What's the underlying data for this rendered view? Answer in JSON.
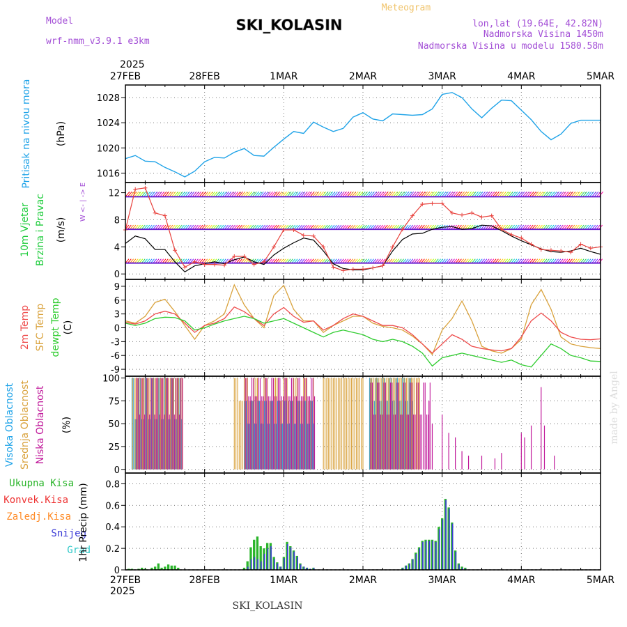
{
  "header": {
    "model_label": "Model",
    "model_name": "wrf-nmm_v3.9.1 e3km",
    "station": "SKI_KOLASIN",
    "title": "Meteogram",
    "lonlat": "lon,lat (19.64E, 42.82N)",
    "elevation": "Nadmorska Visina 1450m",
    "model_elevation": "Nadmorska Visina u modelu 1580.58m",
    "footer_station": "SKI_KOLASIN",
    "watermark": "made by Angel",
    "year_top": "2025",
    "year_bottom": "2025"
  },
  "colors": {
    "pressure": "#1fa3e8",
    "wind_speed": "#000000",
    "wind_gust": "#e8413c",
    "temp2m": "#ee4b4b",
    "sfc": "#d9a23c",
    "dew": "#2ecc2e",
    "high": "#1fa3e8",
    "mid": "#d9a23c",
    "low": "#c0189a",
    "total": "#2bb52b",
    "conv": "#ee3333",
    "frz": "#ff8c28",
    "snow": "#3b3bd6",
    "hail": "#2fc8c8"
  },
  "dates": [
    "27FEB",
    "28FEB",
    "1MAR",
    "2MAR",
    "3MAR",
    "4MAR",
    "5MAR"
  ],
  "chart_data": [
    {
      "type": "line",
      "name": "pressure",
      "ylabel": "Pritisak na nivou mora",
      "unit": "(hPa)",
      "ylim": [
        1014.5,
        1030
      ],
      "yticks": [
        1016,
        1020,
        1024,
        1028
      ],
      "x_hours": [
        0,
        3,
        6,
        9,
        12,
        15,
        18,
        21,
        24,
        27,
        30,
        33,
        36,
        39,
        42,
        45,
        48,
        51,
        54,
        57,
        60,
        63,
        66,
        69,
        72,
        75,
        78,
        81,
        84,
        87,
        90,
        93,
        96,
        99,
        102,
        105,
        108,
        111,
        114,
        117,
        120,
        123,
        126,
        129,
        132,
        135,
        138,
        141,
        144
      ],
      "values": [
        1018.3,
        1018.8,
        1017.9,
        1017.8,
        1016.9,
        1016.2,
        1015.4,
        1016.3,
        1017.8,
        1018.5,
        1018.4,
        1019.3,
        1019.9,
        1018.8,
        1018.7,
        1020.1,
        1021.4,
        1022.6,
        1022.3,
        1024.1,
        1023.3,
        1022.6,
        1023.1,
        1024.9,
        1025.6,
        1024.6,
        1024.3,
        1025.4,
        1025.3,
        1025.2,
        1025.3,
        1026.2,
        1028.5,
        1028.8,
        1028.0,
        1026.2,
        1024.8,
        1026.3,
        1027.6,
        1027.5,
        1026.0,
        1024.5,
        1022.6,
        1021.3,
        1022.2,
        1023.9,
        1024.4,
        1024.4,
        1024.4
      ]
    },
    {
      "type": "line",
      "name": "wind",
      "ylabel": "10m Vjetar",
      "ylabel2": "Brzina i Pravac",
      "unit": "(m/s)",
      "compass": "W <- | -> E",
      "ylim": [
        -0.8,
        13.5
      ],
      "yticks": [
        0,
        4,
        8,
        12
      ],
      "x_hours": [
        0,
        3,
        6,
        9,
        12,
        15,
        18,
        21,
        24,
        27,
        30,
        33,
        36,
        39,
        42,
        45,
        48,
        51,
        54,
        57,
        60,
        63,
        66,
        69,
        72,
        75,
        78,
        81,
        84,
        87,
        90,
        93,
        96,
        99,
        102,
        105,
        108,
        111,
        114,
        117,
        120,
        123,
        126,
        129,
        132,
        135,
        138,
        141,
        144
      ],
      "series": [
        {
          "name": "speed",
          "values": [
            4.5,
            5.6,
            5.2,
            3.6,
            3.6,
            1.8,
            0.3,
            1.2,
            1.5,
            1.8,
            1.5,
            2.1,
            2.5,
            1.8,
            1.4,
            2.8,
            3.8,
            4.6,
            5.3,
            5.0,
            3.4,
            1.5,
            0.8,
            0.6,
            0.6,
            0.9,
            1.2,
            3.4,
            5.1,
            5.9,
            6.0,
            6.6,
            6.9,
            7.0,
            6.6,
            6.7,
            7.2,
            7.1,
            6.4,
            5.6,
            4.9,
            4.3,
            3.7,
            3.3,
            3.2,
            3.4,
            3.8,
            3.3,
            2.9
          ]
        },
        {
          "name": "gust",
          "values": [
            6.5,
            12.5,
            12.7,
            9.0,
            8.6,
            3.5,
            1.0,
            1.8,
            1.4,
            1.4,
            1.3,
            2.6,
            2.6,
            1.4,
            1.8,
            4.0,
            6.5,
            6.5,
            5.7,
            5.6,
            4.0,
            1.0,
            0.5,
            0.7,
            0.7,
            0.9,
            1.2,
            4.0,
            6.6,
            8.6,
            10.3,
            10.4,
            10.4,
            9.0,
            8.7,
            9.0,
            8.4,
            8.6,
            6.6,
            5.8,
            5.3,
            4.4,
            3.6,
            3.5,
            3.4,
            3.2,
            4.4,
            3.8,
            4.0
          ]
        }
      ],
      "barbs_lanes": [
        11.4,
        6.6,
        1.6
      ]
    },
    {
      "type": "line",
      "name": "temperature",
      "ylabels": [
        "2m Temp",
        "SFC Temp",
        "dewpt Temp"
      ],
      "unit": "(C)",
      "ylim": [
        -10.5,
        10.5
      ],
      "yticks": [
        9,
        6,
        3,
        0,
        -3,
        -6,
        -9
      ],
      "x_hours": [
        0,
        3,
        6,
        9,
        12,
        15,
        18,
        21,
        24,
        27,
        30,
        33,
        36,
        39,
        42,
        45,
        48,
        51,
        54,
        57,
        60,
        63,
        66,
        69,
        72,
        75,
        78,
        81,
        84,
        87,
        90,
        93,
        96,
        99,
        102,
        105,
        108,
        111,
        114,
        117,
        120,
        123,
        126,
        129,
        132,
        135,
        138,
        141,
        144
      ],
      "series": [
        {
          "name": "t2m",
          "values": [
            1.2,
            0.8,
            1.5,
            3.0,
            3.6,
            3.0,
            1.0,
            -1.0,
            0.5,
            1.0,
            2.0,
            4.5,
            3.5,
            2.0,
            0.5,
            3.0,
            4.4,
            2.5,
            1.2,
            1.5,
            -0.5,
            0.5,
            2.0,
            3.0,
            2.5,
            1.5,
            0.5,
            0.5,
            0.0,
            -1.5,
            -3.5,
            -5.5,
            -3.5,
            -1.5,
            -2.5,
            -4.0,
            -4.5,
            -4.8,
            -5.0,
            -4.5,
            -2.0,
            1.5,
            3.2,
            1.5,
            -1.0,
            -2.0,
            -2.5,
            -2.6,
            -2.4
          ]
        },
        {
          "name": "sfc",
          "values": [
            1.5,
            1.0,
            2.5,
            5.5,
            6.2,
            3.5,
            0.5,
            -2.5,
            0.5,
            1.5,
            3.0,
            9.3,
            5.0,
            2.0,
            0.0,
            7.0,
            9.2,
            4.0,
            1.5,
            1.5,
            -1.0,
            0.5,
            1.5,
            2.5,
            2.5,
            1.0,
            0.3,
            0.0,
            -0.5,
            -1.8,
            -3.5,
            -5.8,
            -0.5,
            2.0,
            5.8,
            1.5,
            -4.0,
            -5.0,
            -5.5,
            -4.5,
            -2.5,
            5.0,
            8.3,
            4.0,
            -2.0,
            -3.5,
            -4.0,
            -4.3,
            -4.5
          ]
        },
        {
          "name": "dew",
          "values": [
            1.0,
            0.5,
            1.0,
            2.0,
            2.3,
            2.2,
            1.5,
            -0.5,
            0.0,
            0.8,
            1.5,
            2.0,
            2.5,
            2.0,
            1.0,
            1.5,
            2.0,
            1.0,
            0.0,
            -1.0,
            -2.0,
            -1.0,
            -0.5,
            -1.0,
            -1.5,
            -2.5,
            -3.0,
            -2.5,
            -3.0,
            -4.0,
            -5.5,
            -8.3,
            -6.5,
            -6.0,
            -5.5,
            -6.0,
            -6.5,
            -7.0,
            -7.5,
            -7.0,
            -8.0,
            -8.5,
            -6.0,
            -3.5,
            -4.5,
            -6.0,
            -6.5,
            -7.2,
            -7.3
          ]
        }
      ]
    },
    {
      "type": "bar",
      "name": "cloud",
      "ylabels": [
        "Visoka Oblacnost",
        "Srednja Oblacnost",
        "Niska Oblacnost"
      ],
      "unit": "(%)",
      "ylim": [
        -4,
        102
      ],
      "yticks": [
        0,
        25,
        50,
        75,
        100
      ],
      "note": "hourly bars 0-144h"
    },
    {
      "type": "bar",
      "name": "precip",
      "legend": [
        "Ukupna Kisa",
        "Konvek.Kisa",
        "Zaledj.Kisa",
        "Snijeg",
        "Grad"
      ],
      "ylabel": "1hr Precip (mm)",
      "ylim": [
        0,
        0.9
      ],
      "yticks": [
        0,
        0.2,
        0.4,
        0.6,
        0.8
      ],
      "x_hours": [
        1,
        2,
        4,
        5,
        6,
        8,
        9,
        10,
        11,
        12,
        13,
        14,
        15,
        16,
        36,
        37,
        38,
        39,
        40,
        41,
        42,
        43,
        44,
        45,
        46,
        47,
        48,
        49,
        50,
        51,
        52,
        53,
        54,
        55,
        56,
        57,
        84,
        85,
        86,
        87,
        88,
        89,
        90,
        91,
        92,
        93,
        94,
        95,
        96,
        97,
        98,
        99,
        100,
        101,
        102,
        103
      ],
      "total": [
        0.01,
        0.01,
        0.01,
        0.02,
        0.01,
        0.02,
        0.03,
        0.06,
        0.02,
        0.03,
        0.05,
        0.04,
        0.04,
        0.02,
        0.02,
        0.08,
        0.21,
        0.28,
        0.31,
        0.22,
        0.2,
        0.25,
        0.25,
        0.12,
        0.07,
        0.03,
        0.12,
        0.26,
        0.22,
        0.18,
        0.13,
        0.06,
        0.03,
        0.02,
        0.01,
        0.02,
        0.02,
        0.04,
        0.06,
        0.1,
        0.16,
        0.21,
        0.27,
        0.28,
        0.28,
        0.28,
        0.27,
        0.4,
        0.48,
        0.66,
        0.58,
        0.44,
        0.18,
        0.06,
        0.03,
        0.02
      ],
      "snow": [
        0,
        0,
        0,
        0,
        0,
        0,
        0,
        0,
        0,
        0,
        0,
        0,
        0,
        0,
        0,
        0.03,
        0.1,
        0.12,
        0.1,
        0.08,
        0.15,
        0.2,
        0.22,
        0.1,
        0.06,
        0.03,
        0.11,
        0.24,
        0.21,
        0.17,
        0.12,
        0.05,
        0.03,
        0.02,
        0.01,
        0.02,
        0.02,
        0.04,
        0.06,
        0.1,
        0.15,
        0.2,
        0.26,
        0.27,
        0.27,
        0.27,
        0.26,
        0.38,
        0.47,
        0.65,
        0.57,
        0.43,
        0.17,
        0.05,
        0.02,
        0.01
      ]
    }
  ]
}
